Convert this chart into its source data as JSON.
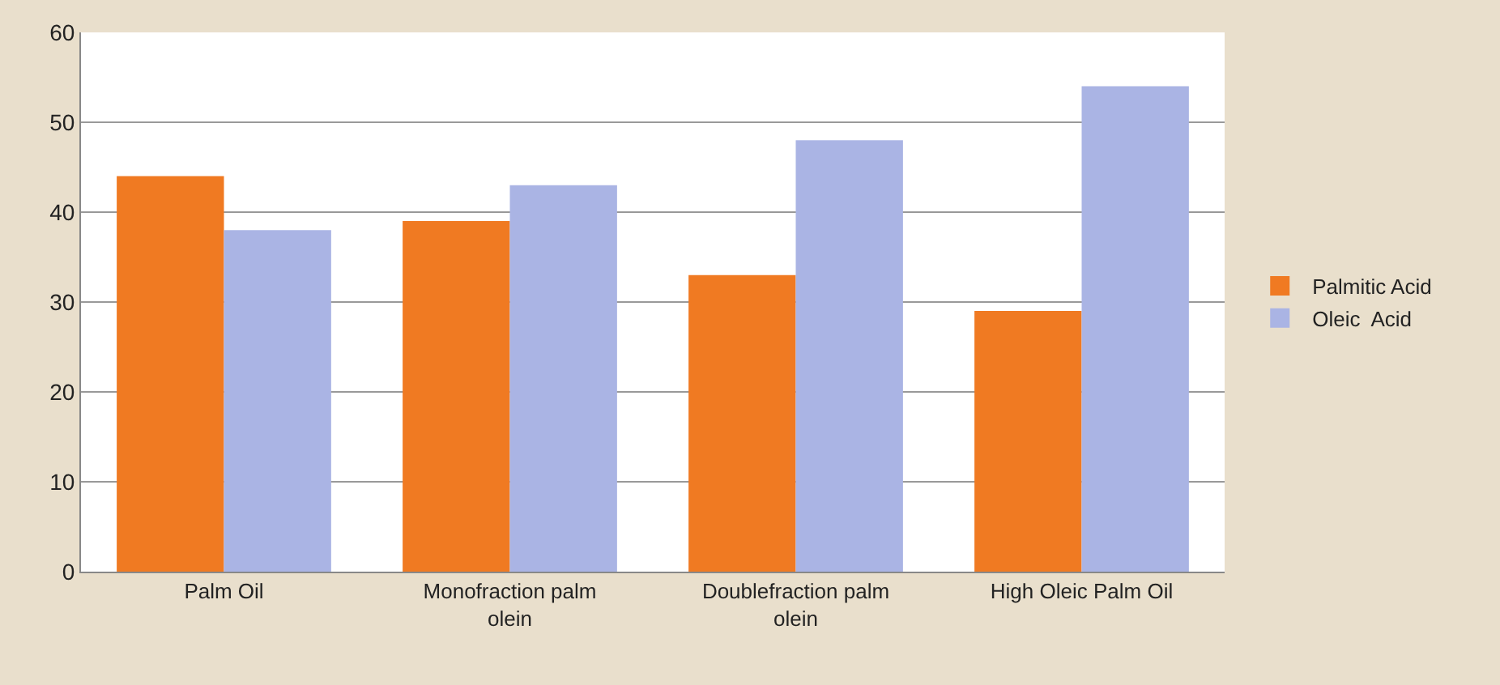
{
  "chart_data": {
    "type": "bar",
    "categories": [
      "Palm Oil",
      "Monofraction palm olein",
      "Doublefraction palm olein",
      "High Oleic Palm Oil"
    ],
    "series": [
      {
        "name": "Palmitic Acid",
        "color": "#f07a22",
        "values": [
          44,
          39,
          33,
          29
        ]
      },
      {
        "name": "Oleic  Acid",
        "color": "#aab4e4",
        "values": [
          38,
          43,
          48,
          54
        ]
      }
    ],
    "ylim": [
      0,
      60
    ],
    "yticks": [
      0,
      10,
      20,
      30,
      40,
      50,
      60
    ],
    "grid": "y",
    "legend": "right"
  }
}
